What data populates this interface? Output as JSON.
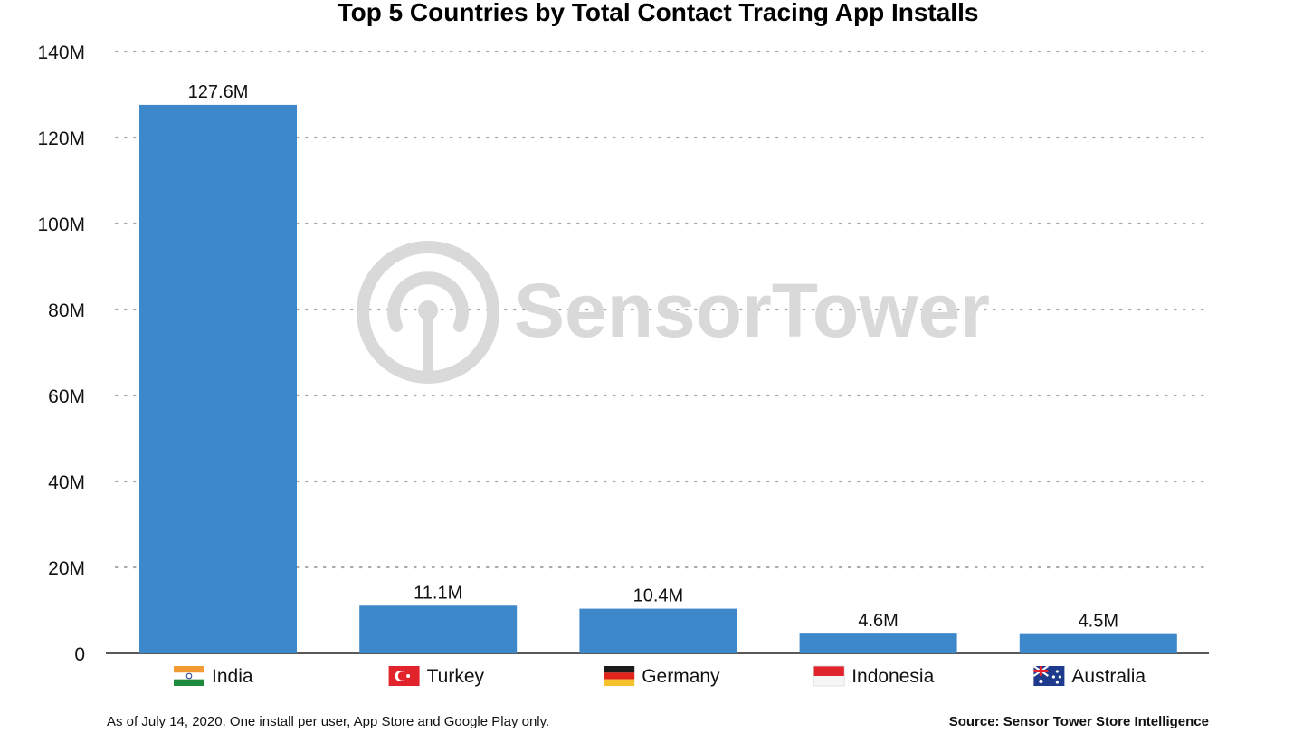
{
  "chart_data": {
    "type": "bar",
    "title": "Top 5 Countries by Total Contact Tracing App Installs",
    "categories": [
      "India",
      "Turkey",
      "Germany",
      "Indonesia",
      "Australia"
    ],
    "values": [
      127.6,
      11.1,
      10.4,
      4.6,
      4.5
    ],
    "value_labels": [
      "127.6M",
      "11.1M",
      "10.4M",
      "4.6M",
      "4.5M"
    ],
    "unit": "M",
    "xlabel": "",
    "ylabel": "",
    "ylim": [
      0,
      140
    ],
    "yticks": [
      0,
      20,
      40,
      60,
      80,
      100,
      120,
      140
    ],
    "ytick_labels": [
      "0",
      "20M",
      "40M",
      "60M",
      "80M",
      "100M",
      "120M",
      "140M"
    ],
    "grid": "horizontal-dotted",
    "legend": "none",
    "bar_color": "#3d87cb"
  },
  "category_flags": [
    "india-flag",
    "turkey-flag",
    "germany-flag",
    "indonesia-flag",
    "australia-flag"
  ],
  "watermark": {
    "text": "SensorTower",
    "icon": "sensor-tower-logo-icon",
    "color": "#d9d9d9"
  },
  "footnote": "As of July 14, 2020. One install per user, App Store and Google Play only.",
  "source": "Source: Sensor Tower Store Intelligence"
}
